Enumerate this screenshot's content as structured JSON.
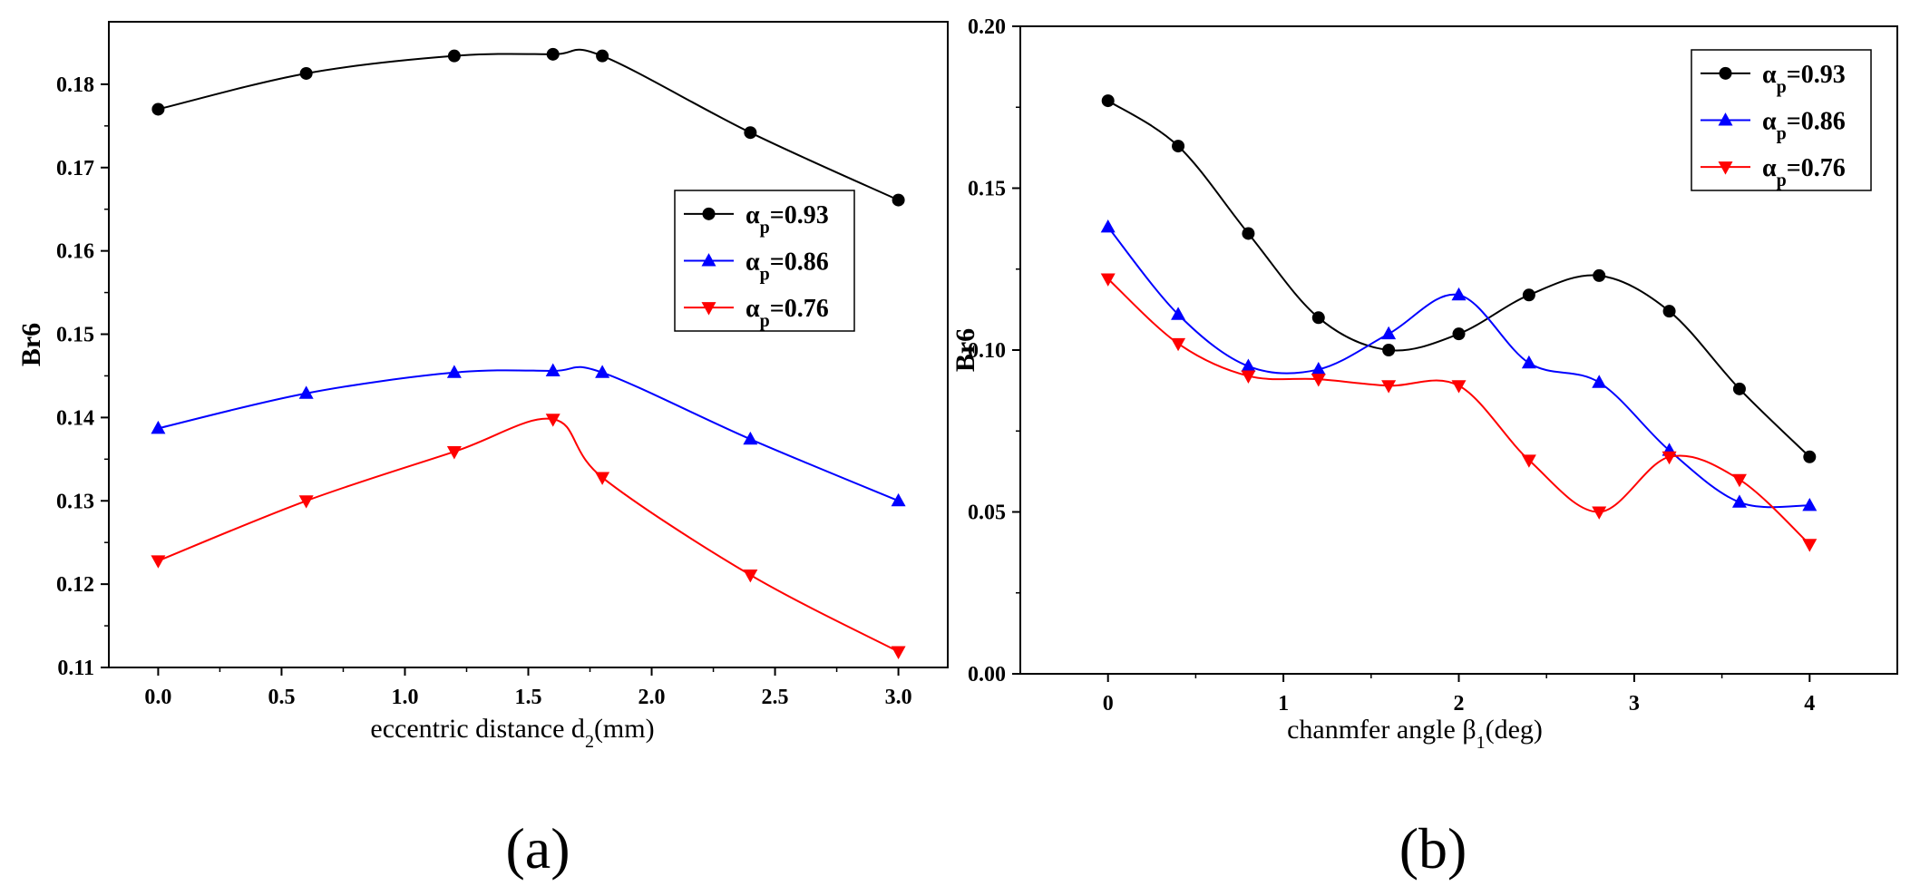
{
  "chart_data": [
    {
      "panel": "(a)",
      "type": "line",
      "xlabel_main": "eccentric distance d",
      "xlabel_sub": "2",
      "xlabel_tail": "(mm)",
      "ylabel": "Br6",
      "xlim": [
        -0.2,
        3.2
      ],
      "ylim": [
        0.11,
        0.1875
      ],
      "xticks": [
        0.0,
        0.5,
        1.0,
        1.5,
        2.0,
        2.5,
        3.0
      ],
      "xtick_labels": [
        "0.0",
        "0.5",
        "1.0",
        "1.5",
        "2.0",
        "2.5",
        "3.0"
      ],
      "yticks": [
        0.11,
        0.12,
        0.13,
        0.14,
        0.15,
        0.16,
        0.17,
        0.18
      ],
      "ytick_labels": [
        "0.11",
        "0.12",
        "0.13",
        "0.14",
        "0.15",
        "0.16",
        "0.17",
        "0.18"
      ],
      "legend_position": "center-right",
      "series": [
        {
          "name": "α_p=0.93",
          "label_main": "α",
          "label_sub": "p",
          "label_tail": "=0.93",
          "color": "#000000",
          "marker": "circle",
          "x": [
            0.0,
            0.6,
            1.2,
            1.6,
            1.8,
            2.4,
            3.0
          ],
          "y": [
            0.177,
            0.1813,
            0.1834,
            0.1836,
            0.1834,
            0.1742,
            0.1661
          ]
        },
        {
          "name": "α_p=0.86",
          "label_main": "α",
          "label_sub": "p",
          "label_tail": "=0.86",
          "color": "#0000ff",
          "marker": "triangle-up",
          "x": [
            0.0,
            0.6,
            1.2,
            1.6,
            1.8,
            2.4,
            3.0
          ],
          "y": [
            0.1387,
            0.1429,
            0.1454,
            0.1456,
            0.1454,
            0.1374,
            0.13
          ]
        },
        {
          "name": "α_p=0.76",
          "label_main": "α",
          "label_sub": "p",
          "label_tail": "=0.76",
          "color": "#ff0000",
          "marker": "triangle-down",
          "x": [
            0.0,
            0.6,
            1.2,
            1.6,
            1.8,
            2.4,
            3.0
          ],
          "y": [
            0.1228,
            0.13,
            0.1359,
            0.1398,
            0.1328,
            0.1211,
            0.1119
          ]
        }
      ]
    },
    {
      "panel": "(b)",
      "type": "line",
      "xlabel_main": "chanmfer angle β",
      "xlabel_sub": "1",
      "xlabel_tail": "(deg)",
      "ylabel": "Br6",
      "xlim": [
        -0.5,
        4.5
      ],
      "ylim": [
        0.0,
        0.2
      ],
      "xticks": [
        0,
        1,
        2,
        3,
        4
      ],
      "xtick_labels": [
        "0",
        "1",
        "2",
        "3",
        "4"
      ],
      "yticks": [
        0.0,
        0.05,
        0.1,
        0.15,
        0.2
      ],
      "ytick_labels": [
        "0.00",
        "0.05",
        "0.10",
        "0.15",
        "0.20"
      ],
      "legend_position": "top-right",
      "series": [
        {
          "name": "α_p=0.93",
          "label_main": "α",
          "label_sub": "p",
          "label_tail": "=0.93",
          "color": "#000000",
          "marker": "circle",
          "x": [
            0,
            0.4,
            0.8,
            1.2,
            1.6,
            2.0,
            2.4,
            2.8,
            3.2,
            3.6,
            4.0
          ],
          "y": [
            0.177,
            0.163,
            0.136,
            0.11,
            0.1,
            0.105,
            0.117,
            0.123,
            0.112,
            0.088,
            0.067
          ]
        },
        {
          "name": "α_p=0.86",
          "label_main": "α",
          "label_sub": "p",
          "label_tail": "=0.86",
          "color": "#0000ff",
          "marker": "triangle-up",
          "x": [
            0,
            0.4,
            0.8,
            1.2,
            1.6,
            2.0,
            2.4,
            2.8,
            3.2,
            3.6,
            4.0
          ],
          "y": [
            0.138,
            0.111,
            0.095,
            0.094,
            0.105,
            0.117,
            0.096,
            0.09,
            0.069,
            0.053,
            0.052
          ]
        },
        {
          "name": "α_p=0.76",
          "label_main": "α",
          "label_sub": "p",
          "label_tail": "=0.76",
          "color": "#ff0000",
          "marker": "triangle-down",
          "x": [
            0,
            0.4,
            0.8,
            1.2,
            1.6,
            2.0,
            2.4,
            2.8,
            3.2,
            3.6,
            4.0
          ],
          "y": [
            0.122,
            0.102,
            0.092,
            0.091,
            0.089,
            0.089,
            0.066,
            0.05,
            0.067,
            0.06,
            0.04
          ]
        }
      ]
    }
  ]
}
